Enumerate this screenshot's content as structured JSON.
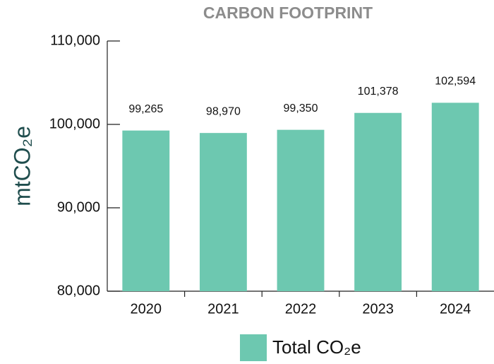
{
  "chart_data": {
    "type": "bar",
    "title": "CARBON FOOTPRINT",
    "y_label": "mtCO₂e",
    "categories": [
      "2020",
      "2021",
      "2022",
      "2023",
      "2024"
    ],
    "series": [
      {
        "name": "Total CO₂e",
        "color": "#6dc8b0",
        "values": [
          99265,
          98970,
          99350,
          101378,
          102594
        ],
        "value_labels": [
          "99,265",
          "98,970",
          "99,350",
          "101,378",
          "102,594"
        ]
      }
    ],
    "ylim": [
      80000,
      110000
    ],
    "yticks": [
      {
        "value": 80000,
        "label": "80,000"
      },
      {
        "value": 90000,
        "label": "90,000"
      },
      {
        "value": 100000,
        "label": "100,000"
      },
      {
        "value": 110000,
        "label": "110,000"
      }
    ],
    "grid": false
  }
}
